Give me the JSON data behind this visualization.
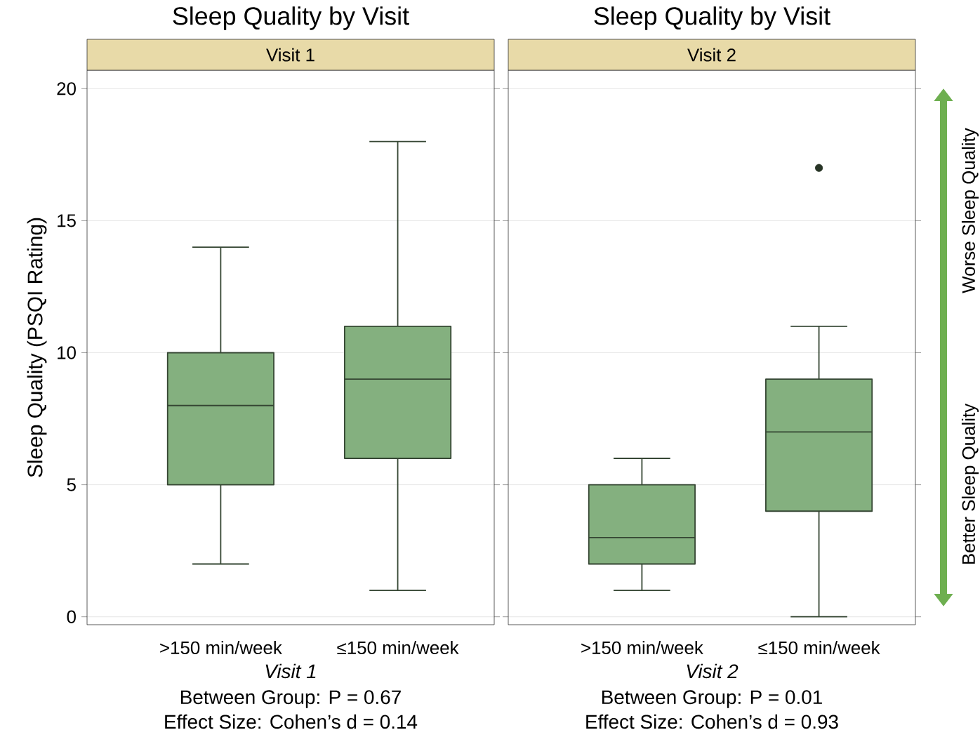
{
  "chart_data": [
    {
      "type": "box",
      "title": "Sleep Quality by Visit",
      "subtitle": "Visit 1",
      "ylabel": "Sleep Quality (PSQI Rating)",
      "categories": [
        ">150 min/week",
        "≤150 min/week"
      ],
      "color": "#84b07f",
      "boxes": [
        {
          "low": 2,
          "q1": 5,
          "median": 8,
          "q3": 10,
          "high": 14
        },
        {
          "low": 1,
          "q1": 6,
          "median": 9,
          "q3": 11,
          "high": 18
        }
      ],
      "ylim": [
        -0.3,
        20.7
      ],
      "yticks": [
        0,
        5,
        10,
        15,
        20
      ],
      "grid": "y",
      "annotations": [
        "Visit 1",
        "Between Group: P = 0.67",
        "Effect Size: Cohen’s d = 0.14"
      ]
    },
    {
      "type": "box",
      "title": "Sleep Quality by Visit",
      "subtitle": "Visit 2",
      "categories": [
        ">150 min/week",
        "≤150 min/week"
      ],
      "color": "#84b07f",
      "boxes": [
        {
          "low": 1,
          "q1": 2,
          "median": 3,
          "q3": 5,
          "high": 6
        },
        {
          "low": 0,
          "q1": 4,
          "median": 7,
          "q3": 9,
          "high": 11,
          "outliers": [
            17
          ]
        }
      ],
      "ylim": [
        -0.3,
        20.7
      ],
      "yticks": [
        0,
        5,
        10,
        15,
        20
      ],
      "grid": "y",
      "tick_labels": "x",
      "annotations": [
        "Visit 2",
        "Between Group: P = 0.01",
        "Effect Size: Cohen’s d = 0.93",
        "Worse Sleep Quality",
        "Better Sleep Quality"
      ]
    }
  ]
}
